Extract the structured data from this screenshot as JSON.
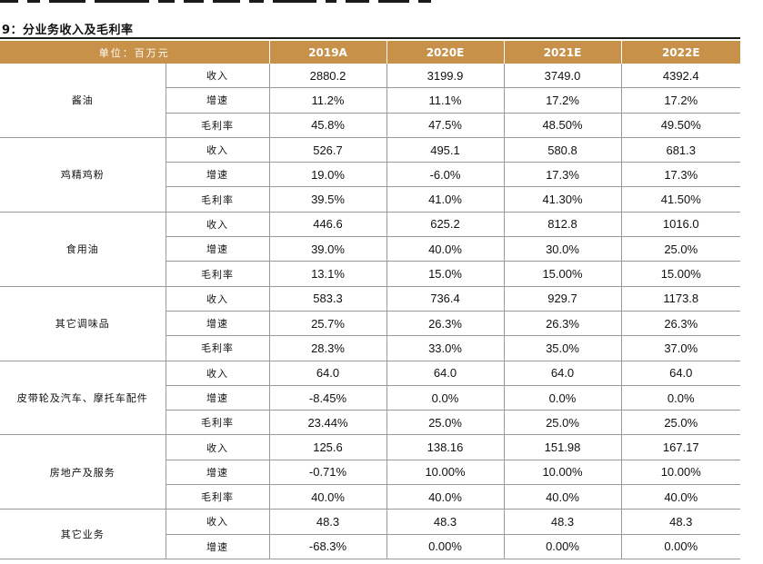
{
  "caption": "9：分业务收入及毛利率",
  "header": {
    "unit_label": "单位：百万元",
    "years": [
      "2019A",
      "2020E",
      "2021E",
      "2022E"
    ]
  },
  "segments": [
    {
      "name": "酱油",
      "rows": [
        {
          "metric": "收入",
          "values": [
            "2880.2",
            "3199.9",
            "3749.0",
            "4392.4"
          ]
        },
        {
          "metric": "增速",
          "values": [
            "11.2%",
            "11.1%",
            "17.2%",
            "17.2%"
          ]
        },
        {
          "metric": "毛利率",
          "values": [
            "45.8%",
            "47.5%",
            "48.50%",
            "49.50%"
          ]
        }
      ]
    },
    {
      "name": "鸡精鸡粉",
      "rows": [
        {
          "metric": "收入",
          "values": [
            "526.7",
            "495.1",
            "580.8",
            "681.3"
          ]
        },
        {
          "metric": "增速",
          "values": [
            "19.0%",
            "-6.0%",
            "17.3%",
            "17.3%"
          ]
        },
        {
          "metric": "毛利率",
          "values": [
            "39.5%",
            "41.0%",
            "41.30%",
            "41.50%"
          ]
        }
      ]
    },
    {
      "name": "食用油",
      "rows": [
        {
          "metric": "收入",
          "values": [
            "446.6",
            "625.2",
            "812.8",
            "1016.0"
          ]
        },
        {
          "metric": "增速",
          "values": [
            "39.0%",
            "40.0%",
            "30.0%",
            "25.0%"
          ]
        },
        {
          "metric": "毛利率",
          "values": [
            "13.1%",
            "15.0%",
            "15.00%",
            "15.00%"
          ]
        }
      ]
    },
    {
      "name": "其它调味品",
      "rows": [
        {
          "metric": "收入",
          "values": [
            "583.3",
            "736.4",
            "929.7",
            "1173.8"
          ]
        },
        {
          "metric": "增速",
          "values": [
            "25.7%",
            "26.3%",
            "26.3%",
            "26.3%"
          ]
        },
        {
          "metric": "毛利率",
          "values": [
            "28.3%",
            "33.0%",
            "35.0%",
            "37.0%"
          ]
        }
      ]
    },
    {
      "name": "皮带轮及汽车、摩托车配件",
      "rows": [
        {
          "metric": "收入",
          "values": [
            "64.0",
            "64.0",
            "64.0",
            "64.0"
          ]
        },
        {
          "metric": "增速",
          "values": [
            "-8.45%",
            "0.0%",
            "0.0%",
            "0.0%"
          ]
        },
        {
          "metric": "毛利率",
          "values": [
            "23.44%",
            "25.0%",
            "25.0%",
            "25.0%"
          ]
        }
      ]
    },
    {
      "name": "房地产及服务",
      "rows": [
        {
          "metric": "收入",
          "values": [
            "125.6",
            "138.16",
            "151.98",
            "167.17"
          ]
        },
        {
          "metric": "增速",
          "values": [
            "-0.71%",
            "10.00%",
            "10.00%",
            "10.00%"
          ]
        },
        {
          "metric": "毛利率",
          "values": [
            "40.0%",
            "40.0%",
            "40.0%",
            "40.0%"
          ]
        }
      ]
    },
    {
      "name": "其它业务",
      "rows": [
        {
          "metric": "收入",
          "values": [
            "48.3",
            "48.3",
            "48.3",
            "48.3"
          ]
        },
        {
          "metric": "增速",
          "values": [
            "-68.3%",
            "0.00%",
            "0.00%",
            "0.00%"
          ]
        }
      ]
    }
  ]
}
